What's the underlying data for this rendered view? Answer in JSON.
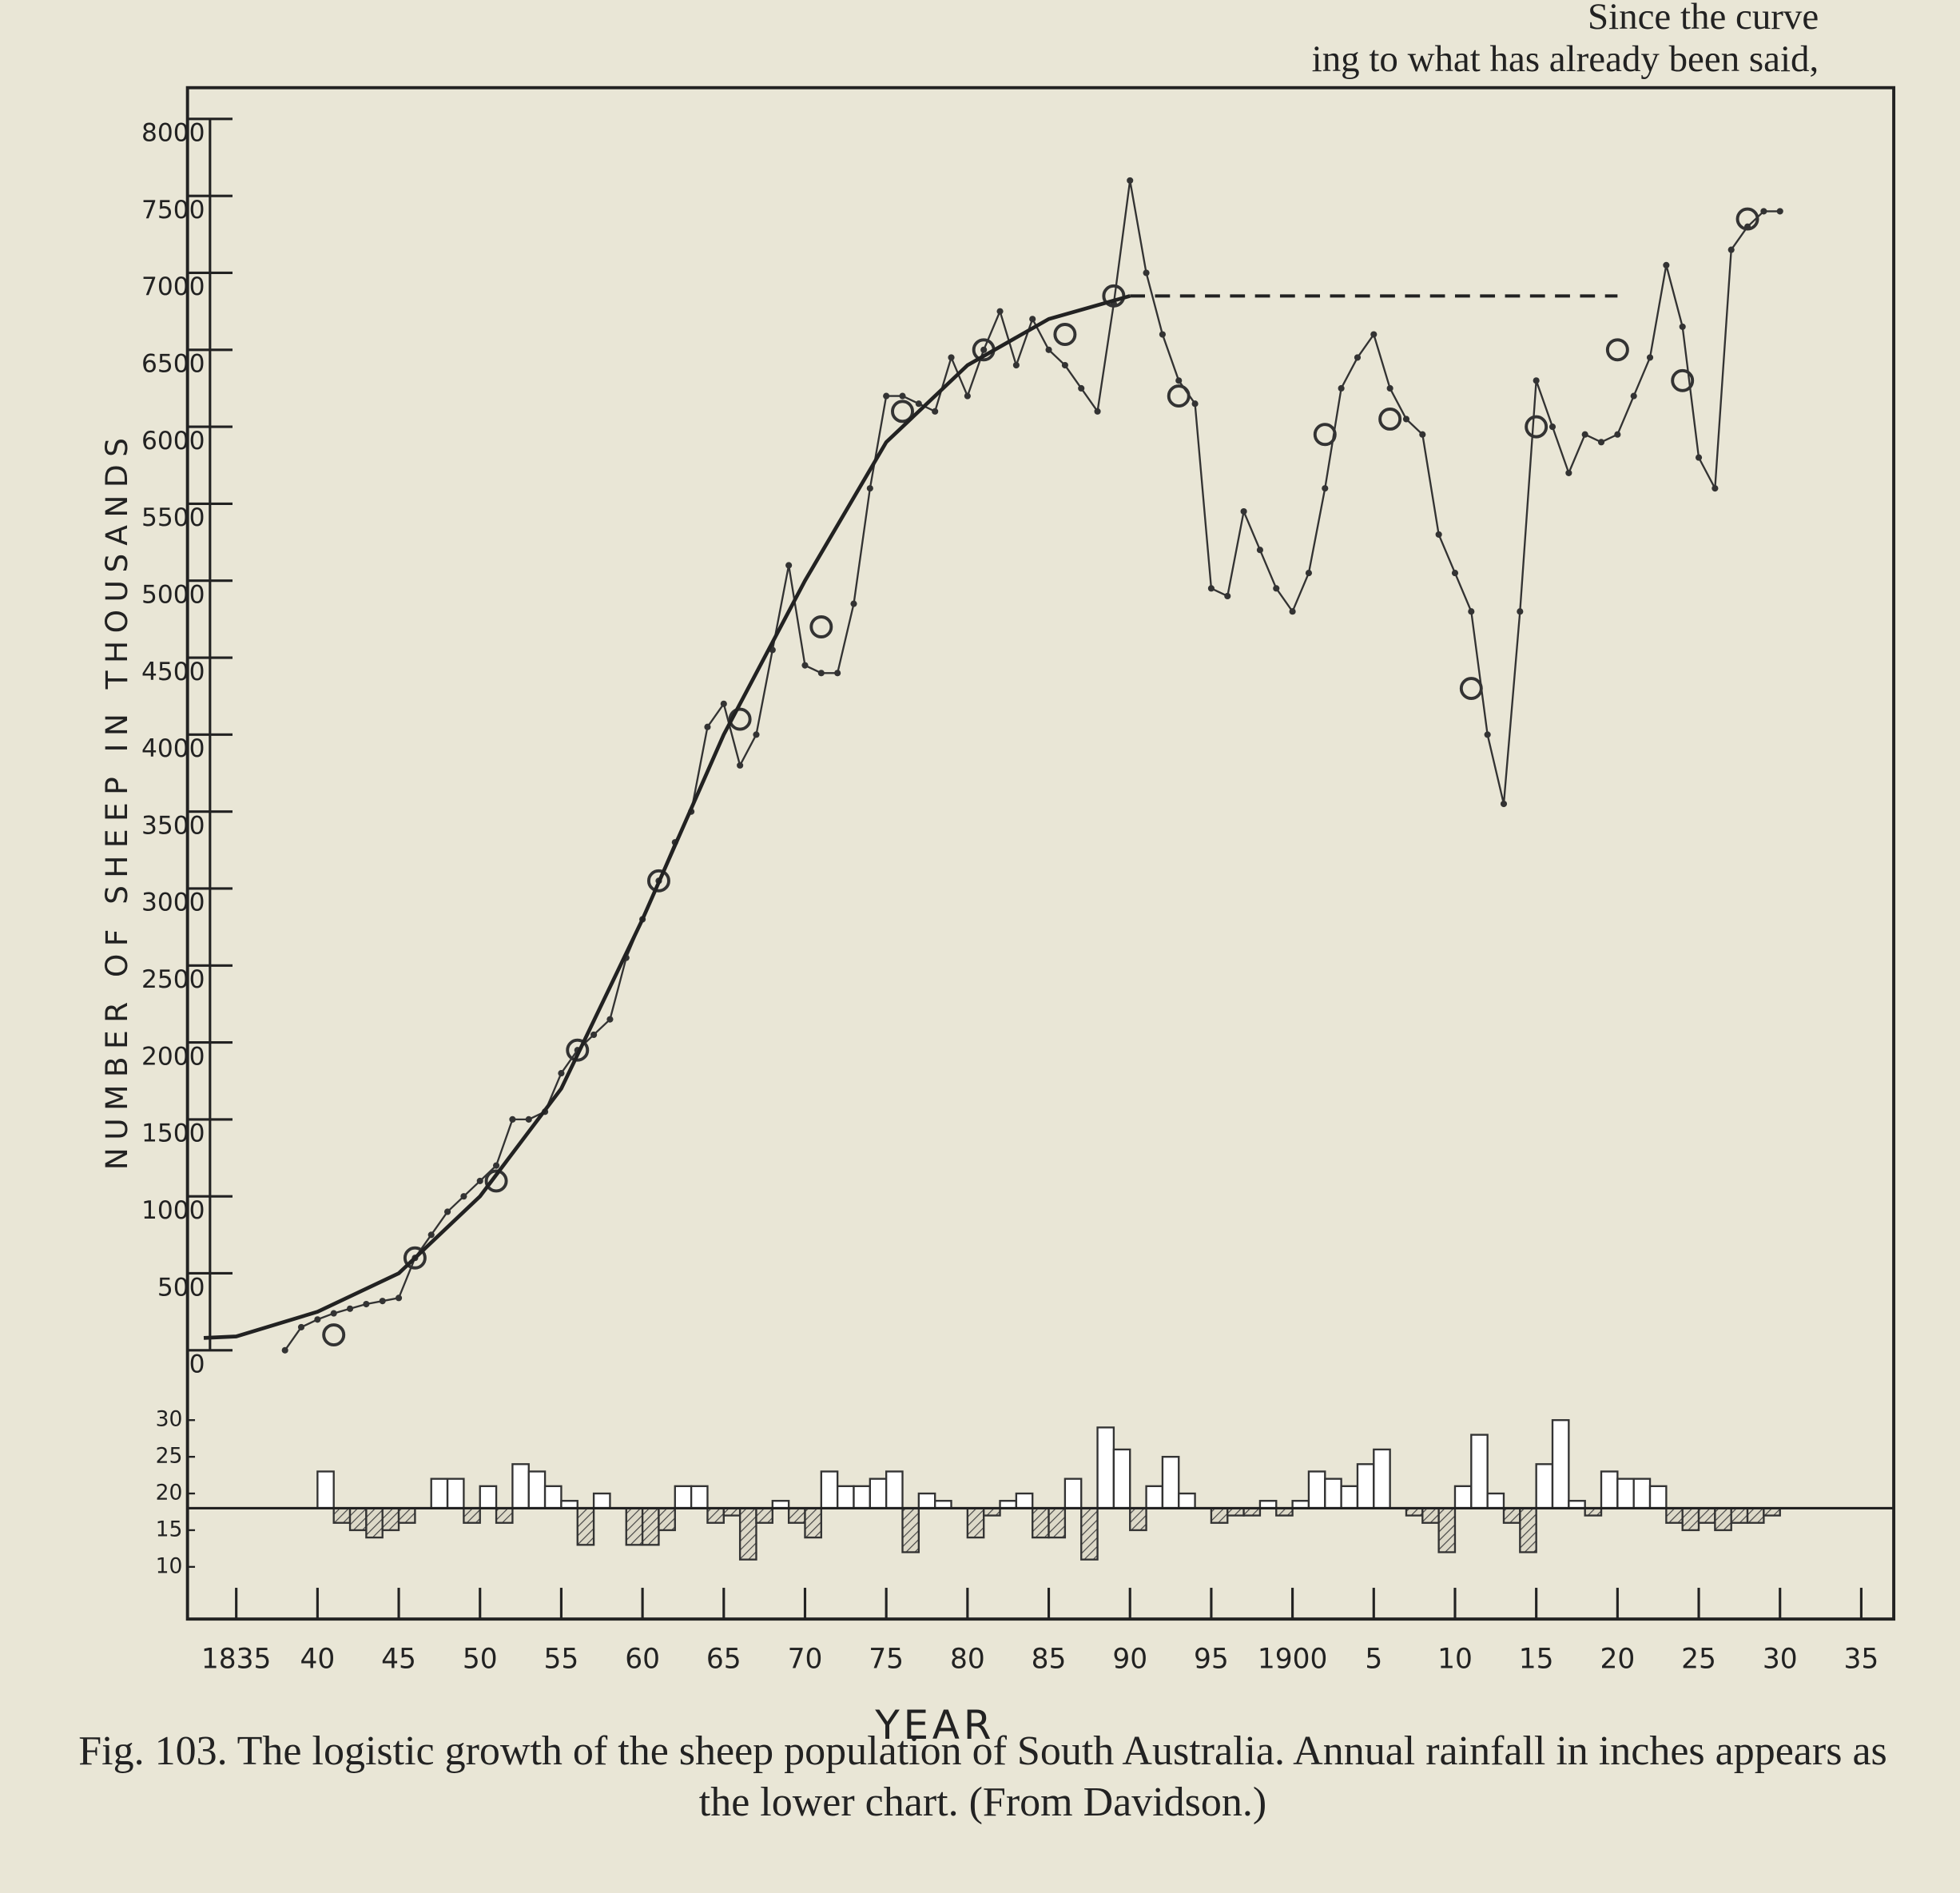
{
  "page_text": {
    "header_line_1": "Since the curve",
    "header_line_2": "ing to what has already been said,"
  },
  "chart_data": [
    {
      "type": "line",
      "y_label": "NUMBER OF SHEEP IN THOUSANDS",
      "xlim": [
        1832,
        1937
      ],
      "ylim": [
        0,
        8000
      ],
      "yticks": [
        0,
        500,
        1000,
        1500,
        2000,
        2500,
        3000,
        3500,
        4000,
        4500,
        5000,
        5500,
        6000,
        6500,
        7000,
        7500,
        8000
      ],
      "series": [
        {
          "style": "dotted-line",
          "color": "#333333",
          "x": [
            1838,
            1839,
            1840,
            1841,
            1842,
            1843,
            1844,
            1845,
            1846,
            1847,
            1848,
            1849,
            1850,
            1851,
            1852,
            1853,
            1854,
            1855,
            1856,
            1857,
            1858,
            1859,
            1860,
            1861,
            1862,
            1863,
            1864,
            1865,
            1866,
            1867,
            1868,
            1869,
            1870,
            1871,
            1872,
            1873,
            1874,
            1875,
            1876,
            1877,
            1878,
            1879,
            1880,
            1881,
            1882,
            1883,
            1884,
            1885,
            1886,
            1887,
            1888,
            1889,
            1890,
            1891,
            1892,
            1893,
            1894,
            1895,
            1896,
            1897,
            1898,
            1899,
            1900,
            1901,
            1902,
            1903,
            1904,
            1905,
            1906,
            1907,
            1908,
            1909,
            1910,
            1911,
            1912,
            1913,
            1914,
            1915,
            1916,
            1917,
            1918,
            1919,
            1920,
            1921,
            1922,
            1923,
            1924,
            1925,
            1926,
            1927,
            1928,
            1929,
            1930
          ],
          "values": [
            0,
            150,
            200,
            240,
            270,
            300,
            320,
            340,
            600,
            750,
            900,
            1000,
            1100,
            1200,
            1500,
            1500,
            1550,
            1800,
            1950,
            2050,
            2150,
            2550,
            2800,
            3050,
            3300,
            3500,
            4050,
            4200,
            3800,
            4000,
            4550,
            5100,
            4450,
            4400,
            4400,
            4850,
            5600,
            6200,
            6200,
            6150,
            6100,
            6450,
            6200,
            6500,
            6750,
            6400,
            6700,
            6500,
            6400,
            6250,
            6100,
            6800,
            7600,
            7000,
            6600,
            6300,
            6150,
            4950,
            4900,
            5450,
            5200,
            4950,
            4800,
            5050,
            5600,
            6250,
            6450,
            6600,
            6250,
            6050,
            5950,
            5300,
            5050,
            4800,
            4000,
            3550,
            4800,
            6300,
            6000,
            5700,
            5950,
            5900,
            5950,
            6200,
            6450,
            7050,
            6650,
            5800,
            5600,
            7150,
            7300,
            7400,
            7400
          ]
        },
        {
          "style": "circles",
          "color": "#333333",
          "x": [
            1841,
            1846,
            1851,
            1856,
            1861,
            1866,
            1871,
            1876,
            1881,
            1886,
            1889,
            1893,
            1902,
            1906,
            1911,
            1915,
            1920,
            1924,
            1928
          ],
          "values": [
            100,
            600,
            1100,
            1950,
            3050,
            4100,
            4700,
            6100,
            6500,
            6600,
            6850,
            6200,
            5950,
            6050,
            4300,
            6000,
            6500,
            6300,
            7350
          ]
        },
        {
          "style": "smooth-line",
          "color": "#222222",
          "x": [
            1833,
            1835,
            1840,
            1845,
            1850,
            1855,
            1860,
            1865,
            1870,
            1875,
            1880,
            1885,
            1890
          ],
          "values": [
            80,
            90,
            250,
            500,
            1000,
            1700,
            2800,
            4000,
            5000,
            5900,
            6400,
            6700,
            6850
          ]
        },
        {
          "style": "dashed-line",
          "color": "#222222",
          "x": [
            1890,
            1920
          ],
          "values": [
            6850,
            6850
          ]
        }
      ]
    },
    {
      "type": "bar",
      "x_label": "YEAR",
      "xlim": [
        1832,
        1937
      ],
      "ylim": [
        8,
        31
      ],
      "yticks": [
        10,
        15,
        20,
        25,
        30
      ],
      "baseline": 18,
      "color": "#ffffff",
      "xticks": [
        {
          "value": 1835,
          "label": "1835"
        },
        {
          "value": 1840,
          "label": "40"
        },
        {
          "value": 1845,
          "label": "45"
        },
        {
          "value": 1850,
          "label": "50"
        },
        {
          "value": 1855,
          "label": "55"
        },
        {
          "value": 1860,
          "label": "60"
        },
        {
          "value": 1865,
          "label": "65"
        },
        {
          "value": 1870,
          "label": "70"
        },
        {
          "value": 1875,
          "label": "75"
        },
        {
          "value": 1880,
          "label": "80"
        },
        {
          "value": 1885,
          "label": "85"
        },
        {
          "value": 1890,
          "label": "90"
        },
        {
          "value": 1895,
          "label": "95"
        },
        {
          "value": 1900,
          "label": "1900"
        },
        {
          "value": 1905,
          "label": "5"
        },
        {
          "value": 1910,
          "label": "10"
        },
        {
          "value": 1915,
          "label": "15"
        },
        {
          "value": 1920,
          "label": "20"
        },
        {
          "value": 1925,
          "label": "25"
        },
        {
          "value": 1930,
          "label": "30"
        },
        {
          "value": 1935,
          "label": "35"
        }
      ],
      "x": [
        1840,
        1841,
        1842,
        1843,
        1844,
        1845,
        1846,
        1847,
        1848,
        1849,
        1850,
        1851,
        1852,
        1853,
        1854,
        1855,
        1856,
        1857,
        1858,
        1859,
        1860,
        1861,
        1862,
        1863,
        1864,
        1865,
        1866,
        1867,
        1868,
        1869,
        1870,
        1871,
        1872,
        1873,
        1874,
        1875,
        1876,
        1877,
        1878,
        1879,
        1880,
        1881,
        1882,
        1883,
        1884,
        1885,
        1886,
        1887,
        1888,
        1889,
        1890,
        1891,
        1892,
        1893,
        1894,
        1895,
        1896,
        1897,
        1898,
        1899,
        1900,
        1901,
        1902,
        1903,
        1904,
        1905,
        1906,
        1907,
        1908,
        1909,
        1910,
        1911,
        1912,
        1913,
        1914,
        1915,
        1916,
        1917,
        1918,
        1919,
        1920,
        1921,
        1922,
        1923,
        1924,
        1925,
        1926,
        1927,
        1928,
        1929
      ],
      "values": [
        23,
        16,
        15,
        14,
        15,
        16,
        18,
        22,
        22,
        16,
        21,
        16,
        24,
        23,
        21,
        19,
        13,
        20,
        18,
        13,
        13,
        15,
        21,
        21,
        16,
        17,
        11,
        16,
        19,
        16,
        14,
        23,
        21,
        21,
        22,
        23,
        12,
        20,
        19,
        18,
        14,
        17,
        19,
        20,
        14,
        14,
        22,
        11,
        29,
        26,
        15,
        21,
        25,
        20,
        18,
        16,
        17,
        17,
        19,
        17,
        19,
        23,
        22,
        21,
        24,
        26,
        18,
        17,
        16,
        12,
        21,
        28,
        20,
        16,
        12,
        24,
        30,
        19,
        17,
        23,
        22,
        22,
        21,
        16,
        15,
        16,
        15,
        16,
        16,
        17
      ]
    }
  ],
  "caption": "Fig. 103. The logistic growth of the sheep population of South Australia. Annual rainfall in inches appears as the lower chart. (From Davidson.)"
}
